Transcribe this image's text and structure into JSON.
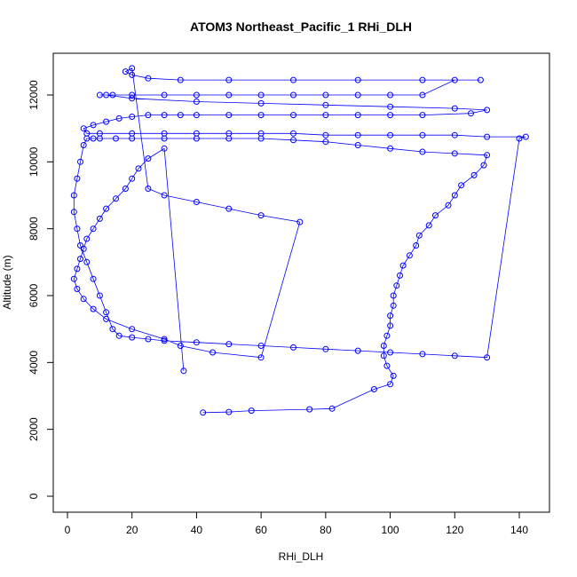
{
  "chart_data": {
    "type": "scatter",
    "title": "ATOM3 Northeast_Pacific_1 RHi_DLH",
    "xlabel": "RHi_DLH",
    "ylabel": "Altitude (m)",
    "xlim": [
      0,
      140
    ],
    "ylim": [
      0,
      12000
    ],
    "x_ticks": [
      "0",
      "20",
      "40",
      "60",
      "80",
      "100",
      "120",
      "140"
    ],
    "y_ticks": [
      "0",
      "2000",
      "4000",
      "6000",
      "8000",
      "10000",
      "12000"
    ],
    "grid": false,
    "colors": {
      "series": "#0000ff",
      "axis": "#000000",
      "background": "#ffffff"
    },
    "series": [
      {
        "style": "points-and-lines",
        "x": [
          42,
          50,
          57,
          75,
          82,
          95,
          100,
          101,
          99,
          98,
          98,
          99,
          100,
          100,
          101,
          101,
          102,
          103,
          104,
          106,
          108,
          109,
          112,
          114,
          118,
          120,
          122,
          126,
          129,
          130,
          120,
          110,
          100,
          90,
          80,
          70,
          60,
          50,
          40,
          30,
          20,
          15,
          10,
          8,
          6,
          5,
          4,
          3,
          2,
          2,
          3,
          4,
          6,
          8,
          10,
          12,
          14,
          16,
          20,
          25,
          30,
          40,
          50,
          60,
          70,
          80,
          90,
          100,
          110,
          120,
          130,
          140,
          142,
          130,
          120,
          110,
          100,
          90,
          80,
          70,
          60,
          50,
          40,
          30,
          20,
          10,
          6,
          5,
          8,
          12,
          16,
          20,
          25,
          30,
          35,
          40,
          50,
          60,
          70,
          80,
          90,
          100,
          110,
          125,
          130,
          120,
          100,
          80,
          60,
          40,
          20,
          12,
          10,
          14,
          20,
          30,
          40,
          50,
          60,
          70,
          80,
          90,
          100,
          110,
          120,
          128,
          110,
          90,
          70,
          50,
          35,
          25,
          20,
          18,
          20,
          25,
          30,
          40,
          50,
          60,
          72,
          60,
          45,
          35,
          30,
          20,
          12,
          8,
          5,
          3,
          2,
          3,
          4,
          5,
          6,
          8,
          10,
          12,
          15,
          18,
          20,
          22,
          25,
          30,
          36
        ],
        "y": [
          2500,
          2520,
          2560,
          2600,
          2620,
          3200,
          3350,
          3600,
          3900,
          4200,
          4500,
          4800,
          5100,
          5400,
          5700,
          6000,
          6300,
          6600,
          6900,
          7200,
          7500,
          7800,
          8100,
          8400,
          8700,
          9000,
          9300,
          9600,
          9900,
          10200,
          10250,
          10300,
          10400,
          10500,
          10600,
          10650,
          10700,
          10700,
          10700,
          10700,
          10700,
          10700,
          10700,
          10700,
          10700,
          10500,
          10000,
          9500,
          9000,
          8500,
          8000,
          7500,
          7000,
          6500,
          6000,
          5500,
          5000,
          4800,
          4750,
          4700,
          4650,
          4600,
          4550,
          4500,
          4450,
          4400,
          4350,
          4300,
          4250,
          4200,
          4150,
          10700,
          10750,
          10750,
          10800,
          10800,
          10800,
          10800,
          10800,
          10850,
          10850,
          10850,
          10850,
          10850,
          10850,
          10850,
          10850,
          11000,
          11100,
          11200,
          11300,
          11350,
          11400,
          11400,
          11400,
          11400,
          11400,
          11400,
          11400,
          11400,
          11400,
          11400,
          11400,
          11450,
          11550,
          11600,
          11650,
          11700,
          11750,
          11800,
          11900,
          12000,
          12000,
          12000,
          12000,
          12000,
          12000,
          12000,
          12000,
          12000,
          12000,
          12000,
          12000,
          12000,
          12450,
          12450,
          12450,
          12450,
          12450,
          12450,
          12450,
          12500,
          12600,
          12700,
          12800,
          9200,
          9000,
          8800,
          8600,
          8400,
          8200,
          4150,
          4300,
          4500,
          4700,
          5000,
          5300,
          5600,
          5900,
          6200,
          6500,
          6800,
          7100,
          7400,
          7700,
          8000,
          8300,
          8600,
          8900,
          9200,
          9500,
          9800,
          10100,
          10400,
          3750
        ]
      }
    ]
  }
}
